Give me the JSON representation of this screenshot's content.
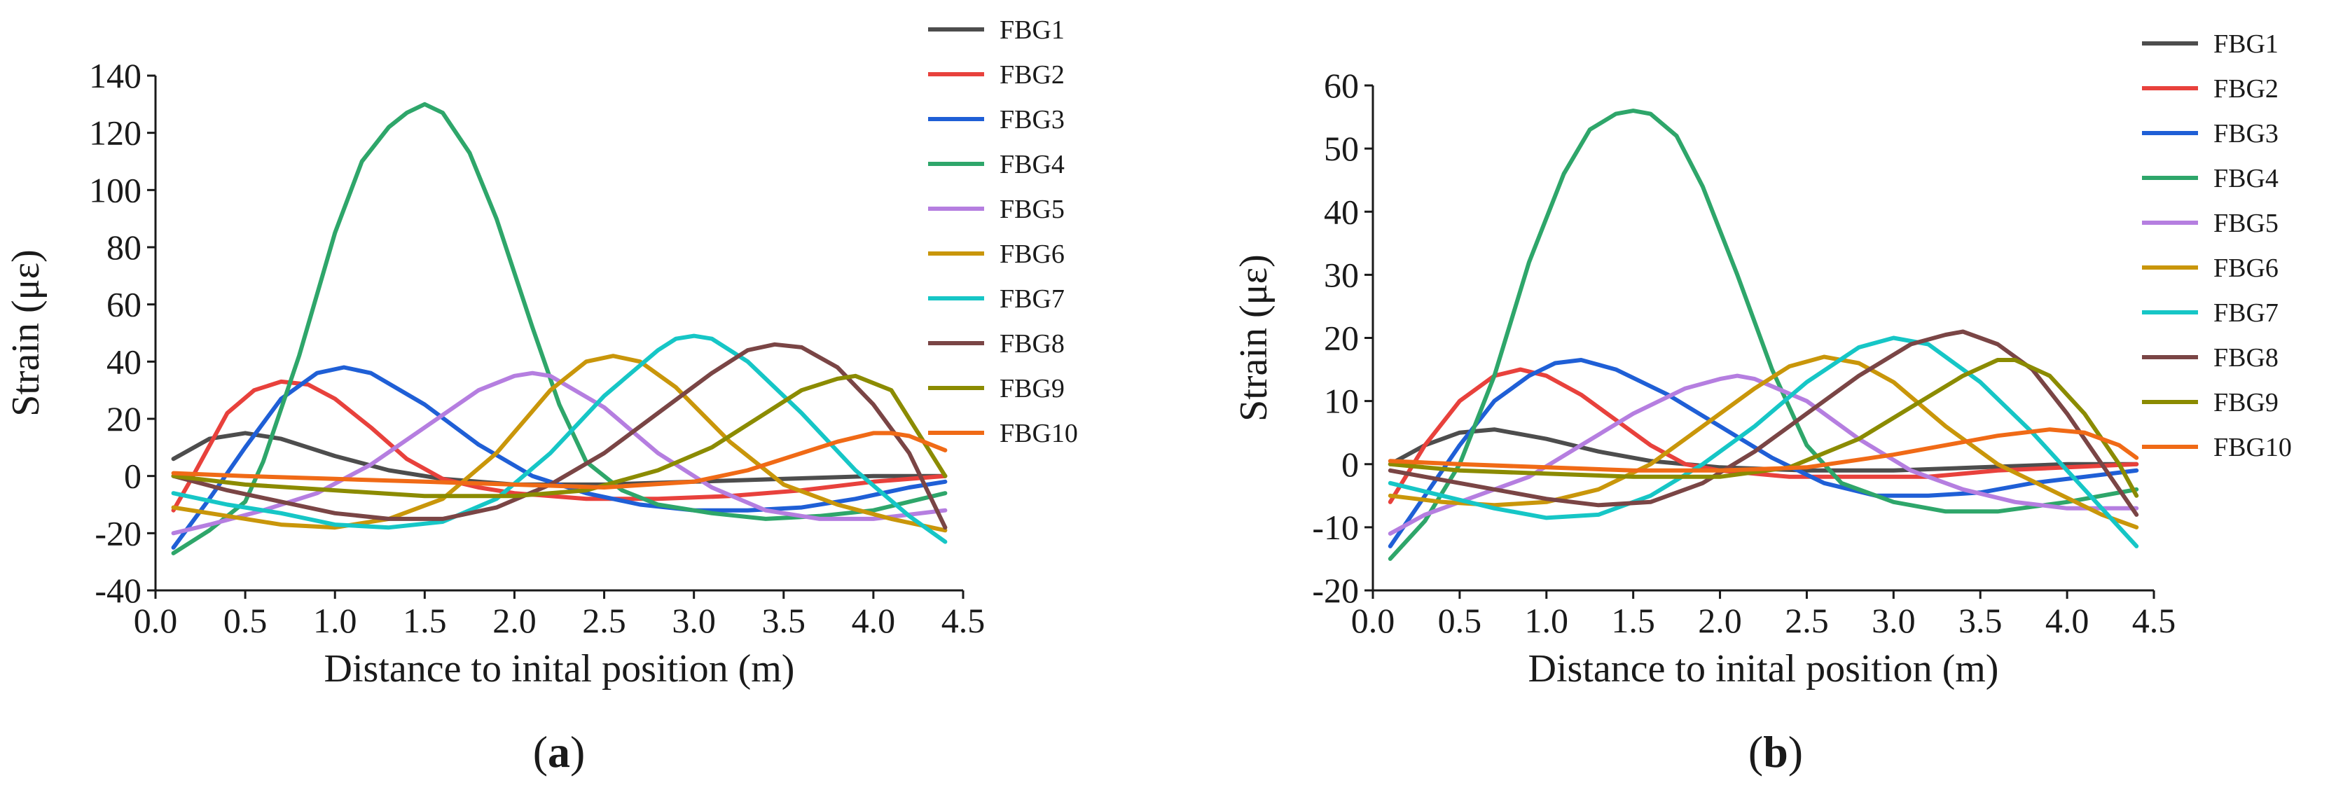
{
  "chart_data": [
    {
      "panel": "a",
      "type": "line",
      "xlabel": "Distance to inital position (m)",
      "ylabel": "Strain (με)",
      "xlim": [
        0,
        4.5
      ],
      "ylim": [
        -40,
        140
      ],
      "xticks": [
        0,
        0.5,
        1,
        1.5,
        2,
        2.5,
        3,
        3.5,
        4,
        4.5
      ],
      "xtick_labels": [
        "0.0",
        "0.5",
        "1.0",
        "1.5",
        "2.0",
        "2.5",
        "3.0",
        "3.5",
        "4.0",
        "4.5"
      ],
      "yticks": [
        -40,
        -20,
        0,
        20,
        40,
        60,
        80,
        100,
        120,
        140
      ],
      "ytick_labels": [
        "-40",
        "-20",
        "0",
        "20",
        "40",
        "60",
        "80",
        "100",
        "120",
        "140"
      ],
      "legend_position": "top-right",
      "series": [
        {
          "name": "FBG1",
          "color": "#4d4d4d",
          "x": [
            0.1,
            0.3,
            0.5,
            0.7,
            1.0,
            1.3,
            1.6,
            2.0,
            2.5,
            3.0,
            3.5,
            4.0,
            4.4
          ],
          "y": [
            6,
            13,
            15,
            13,
            7,
            2,
            -1,
            -3,
            -3,
            -2,
            -1,
            0,
            0
          ]
        },
        {
          "name": "FBG2",
          "color": "#e8413c",
          "x": [
            0.1,
            0.2,
            0.4,
            0.55,
            0.7,
            0.85,
            1.0,
            1.2,
            1.4,
            1.6,
            1.8,
            2.0,
            2.4,
            2.8,
            3.2,
            3.6,
            4.0,
            4.4
          ],
          "y": [
            -12,
            -1,
            22,
            30,
            33,
            32,
            27,
            17,
            6,
            -1,
            -4,
            -6,
            -8,
            -8,
            -7,
            -5,
            -2,
            0
          ]
        },
        {
          "name": "FBG3",
          "color": "#1f5fd6",
          "x": [
            0.1,
            0.3,
            0.5,
            0.7,
            0.9,
            1.05,
            1.2,
            1.5,
            1.8,
            2.1,
            2.4,
            2.7,
            3.0,
            3.3,
            3.6,
            3.9,
            4.2,
            4.4
          ],
          "y": [
            -25,
            -8,
            10,
            27,
            36,
            38,
            36,
            25,
            11,
            0,
            -6,
            -10,
            -12,
            -12,
            -11,
            -8,
            -4,
            -2
          ]
        },
        {
          "name": "FBG4",
          "color": "#2ea66a",
          "x": [
            0.1,
            0.3,
            0.5,
            0.6,
            0.8,
            1.0,
            1.15,
            1.3,
            1.4,
            1.5,
            1.6,
            1.75,
            1.9,
            2.1,
            2.25,
            2.4,
            2.6,
            2.8,
            3.1,
            3.4,
            3.7,
            4.0,
            4.4
          ],
          "y": [
            -27,
            -19,
            -9,
            5,
            42,
            85,
            110,
            122,
            127,
            130,
            127,
            113,
            90,
            52,
            25,
            5,
            -5,
            -10,
            -13,
            -15,
            -14,
            -12,
            -6
          ]
        },
        {
          "name": "FBG5",
          "color": "#b57ee0",
          "x": [
            0.1,
            0.3,
            0.6,
            0.9,
            1.2,
            1.5,
            1.8,
            2.0,
            2.1,
            2.2,
            2.5,
            2.8,
            3.1,
            3.4,
            3.7,
            4.0,
            4.4
          ],
          "y": [
            -20,
            -17,
            -12,
            -6,
            4,
            17,
            30,
            35,
            36,
            35,
            24,
            8,
            -4,
            -12,
            -15,
            -15,
            -12
          ]
        },
        {
          "name": "FBG6",
          "color": "#c9960a",
          "x": [
            0.1,
            0.4,
            0.7,
            1.0,
            1.3,
            1.6,
            1.9,
            2.2,
            2.4,
            2.55,
            2.7,
            2.9,
            3.2,
            3.5,
            3.8,
            4.1,
            4.4
          ],
          "y": [
            -11,
            -14,
            -17,
            -18,
            -15,
            -8,
            8,
            30,
            40,
            42,
            40,
            31,
            12,
            -3,
            -10,
            -15,
            -19
          ]
        },
        {
          "name": "FBG7",
          "color": "#16c6c6",
          "x": [
            0.1,
            0.4,
            0.7,
            1.0,
            1.3,
            1.6,
            1.9,
            2.2,
            2.5,
            2.8,
            2.9,
            3.0,
            3.1,
            3.3,
            3.6,
            3.9,
            4.2,
            4.4
          ],
          "y": [
            -6,
            -10,
            -13,
            -17,
            -18,
            -16,
            -8,
            8,
            28,
            44,
            48,
            49,
            48,
            40,
            22,
            2,
            -14,
            -23
          ]
        },
        {
          "name": "FBG8",
          "color": "#7a4545",
          "x": [
            0.1,
            0.4,
            0.7,
            1.0,
            1.3,
            1.6,
            1.9,
            2.2,
            2.5,
            2.8,
            3.1,
            3.3,
            3.45,
            3.6,
            3.8,
            4.0,
            4.2,
            4.4
          ],
          "y": [
            0,
            -5,
            -9,
            -13,
            -15,
            -15,
            -11,
            -3,
            8,
            22,
            36,
            44,
            46,
            45,
            38,
            25,
            8,
            -18
          ]
        },
        {
          "name": "FBG9",
          "color": "#8b8b00",
          "x": [
            0.1,
            0.5,
            1.0,
            1.5,
            2.0,
            2.4,
            2.8,
            3.1,
            3.4,
            3.6,
            3.8,
            3.9,
            4.1,
            4.3,
            4.4
          ],
          "y": [
            0,
            -3,
            -5,
            -7,
            -7,
            -5,
            2,
            10,
            22,
            30,
            34,
            35,
            30,
            10,
            0
          ]
        },
        {
          "name": "FBG10",
          "color": "#f06a16",
          "x": [
            0.1,
            0.5,
            1.0,
            1.5,
            2.0,
            2.5,
            3.0,
            3.3,
            3.6,
            3.8,
            4.0,
            4.1,
            4.2,
            4.4
          ],
          "y": [
            1,
            0,
            -1,
            -2,
            -3,
            -4,
            -2,
            2,
            8,
            12,
            15,
            15,
            14,
            9
          ]
        }
      ]
    },
    {
      "panel": "b",
      "type": "line",
      "xlabel": "Distance to inital position (m)",
      "ylabel": "Strain (με)",
      "xlim": [
        0,
        4.5
      ],
      "ylim": [
        -20,
        60
      ],
      "xticks": [
        0,
        0.5,
        1,
        1.5,
        2,
        2.5,
        3,
        3.5,
        4,
        4.5
      ],
      "xtick_labels": [
        "0.0",
        "0.5",
        "1.0",
        "1.5",
        "2.0",
        "2.5",
        "3.0",
        "3.5",
        "4.0",
        "4.5"
      ],
      "yticks": [
        -20,
        -10,
        0,
        10,
        20,
        30,
        40,
        50,
        60
      ],
      "ytick_labels": [
        "-20",
        "-10",
        "0",
        "10",
        "20",
        "30",
        "40",
        "50",
        "60"
      ],
      "legend_position": "top-right",
      "series": [
        {
          "name": "FBG1",
          "color": "#4d4d4d",
          "x": [
            0.1,
            0.3,
            0.5,
            0.7,
            1.0,
            1.3,
            1.6,
            2.0,
            2.5,
            3.0,
            3.5,
            4.0,
            4.4
          ],
          "y": [
            0,
            3,
            5,
            5.5,
            4,
            2,
            0.5,
            -0.5,
            -1,
            -1,
            -0.5,
            0,
            0
          ]
        },
        {
          "name": "FBG2",
          "color": "#e8413c",
          "x": [
            0.1,
            0.3,
            0.5,
            0.7,
            0.85,
            1.0,
            1.2,
            1.4,
            1.6,
            1.8,
            2.0,
            2.4,
            2.8,
            3.2,
            3.6,
            4.0,
            4.4
          ],
          "y": [
            -6,
            3,
            10,
            14,
            15,
            14,
            11,
            7,
            3,
            0,
            -1,
            -2,
            -2,
            -2,
            -1,
            -0.5,
            0
          ]
        },
        {
          "name": "FBG3",
          "color": "#1f5fd6",
          "x": [
            0.1,
            0.3,
            0.5,
            0.7,
            0.9,
            1.05,
            1.2,
            1.4,
            1.7,
            2.0,
            2.3,
            2.6,
            2.9,
            3.2,
            3.5,
            3.8,
            4.1,
            4.4
          ],
          "y": [
            -13,
            -5,
            3,
            10,
            14,
            16,
            16.5,
            15,
            11,
            6,
            1,
            -3,
            -5,
            -5,
            -4.5,
            -3,
            -2,
            -1
          ]
        },
        {
          "name": "FBG4",
          "color": "#2ea66a",
          "x": [
            0.1,
            0.3,
            0.5,
            0.7,
            0.9,
            1.1,
            1.25,
            1.4,
            1.5,
            1.6,
            1.75,
            1.9,
            2.1,
            2.3,
            2.5,
            2.7,
            3.0,
            3.3,
            3.6,
            4.0,
            4.4
          ],
          "y": [
            -15,
            -9,
            0,
            14,
            32,
            46,
            53,
            55.5,
            56,
            55.5,
            52,
            44,
            30,
            15,
            3,
            -3,
            -6,
            -7.5,
            -7.5,
            -6,
            -4
          ]
        },
        {
          "name": "FBG5",
          "color": "#b57ee0",
          "x": [
            0.1,
            0.3,
            0.6,
            0.9,
            1.2,
            1.5,
            1.8,
            2.0,
            2.1,
            2.2,
            2.5,
            2.8,
            3.1,
            3.4,
            3.7,
            4.0,
            4.4
          ],
          "y": [
            -11,
            -8,
            -5,
            -2,
            3,
            8,
            12,
            13.5,
            14,
            13.5,
            10,
            4,
            -1,
            -4,
            -6,
            -7,
            -7
          ]
        },
        {
          "name": "FBG6",
          "color": "#c9960a",
          "x": [
            0.1,
            0.4,
            0.7,
            1.0,
            1.3,
            1.6,
            1.9,
            2.2,
            2.4,
            2.6,
            2.8,
            3.0,
            3.3,
            3.6,
            3.9,
            4.2,
            4.4
          ],
          "y": [
            -5,
            -6,
            -6.5,
            -6,
            -4,
            0,
            6,
            12,
            15.5,
            17,
            16,
            13,
            6,
            0,
            -4,
            -8,
            -10
          ]
        },
        {
          "name": "FBG7",
          "color": "#16c6c6",
          "x": [
            0.1,
            0.4,
            0.7,
            1.0,
            1.3,
            1.6,
            1.9,
            2.2,
            2.5,
            2.8,
            3.0,
            3.2,
            3.5,
            3.8,
            4.1,
            4.4
          ],
          "y": [
            -3,
            -5,
            -7,
            -8.5,
            -8,
            -5,
            0,
            6,
            13,
            18.5,
            20,
            19,
            13,
            5,
            -4,
            -13
          ]
        },
        {
          "name": "FBG8",
          "color": "#7a4545",
          "x": [
            0.1,
            0.4,
            0.7,
            1.0,
            1.3,
            1.6,
            1.9,
            2.2,
            2.5,
            2.8,
            3.1,
            3.3,
            3.4,
            3.6,
            3.8,
            4.0,
            4.2,
            4.4
          ],
          "y": [
            -1,
            -2.5,
            -4,
            -5.5,
            -6.5,
            -6,
            -3,
            2,
            8,
            14,
            19,
            20.5,
            21,
            19,
            15,
            8,
            0,
            -8
          ]
        },
        {
          "name": "FBG9",
          "color": "#8b8b00",
          "x": [
            0.1,
            0.5,
            1.0,
            1.5,
            2.0,
            2.4,
            2.8,
            3.1,
            3.4,
            3.6,
            3.7,
            3.9,
            4.1,
            4.3,
            4.4
          ],
          "y": [
            0,
            -1,
            -1.5,
            -2,
            -2,
            -0.5,
            4,
            9,
            14,
            16.5,
            16.5,
            14,
            8,
            0,
            -5
          ]
        },
        {
          "name": "FBG10",
          "color": "#f06a16",
          "x": [
            0.1,
            0.5,
            1.0,
            1.5,
            2.0,
            2.5,
            3.0,
            3.3,
            3.6,
            3.9,
            4.1,
            4.3,
            4.4
          ],
          "y": [
            0.5,
            0,
            -0.5,
            -1,
            -1,
            -0.5,
            1.5,
            3,
            4.5,
            5.5,
            5,
            3,
            1
          ]
        }
      ]
    }
  ],
  "panels": [
    {
      "letter": "a"
    },
    {
      "letter": "b"
    }
  ]
}
